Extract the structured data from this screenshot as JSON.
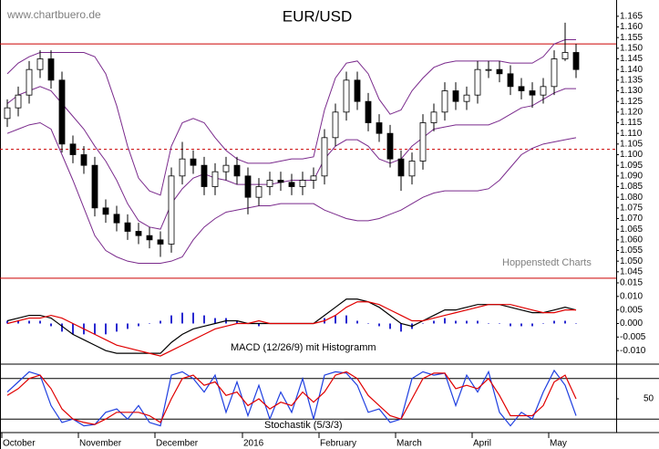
{
  "chart_data": [
    {
      "type": "candlestick",
      "title": "EUR/USD",
      "annotations": [
        "www.chartbuero.de",
        "Hoppenstedt Charts"
      ],
      "categories": [
        "October",
        null,
        null,
        null,
        null,
        null,
        null,
        "November",
        null,
        null,
        null,
        null,
        null,
        null,
        "December",
        null,
        null,
        null,
        null,
        null,
        null,
        null,
        "2016",
        null,
        null,
        null,
        null,
        null,
        null,
        "February",
        null,
        null,
        null,
        null,
        null,
        null,
        "March",
        null,
        null,
        null,
        null,
        null,
        null,
        "April",
        null,
        null,
        null,
        null,
        null,
        null,
        "May",
        null,
        null
      ],
      "open": [
        1.117,
        1.122,
        1.128,
        1.14,
        1.145,
        1.135,
        1.105,
        1.1,
        1.095,
        1.075,
        1.072,
        1.068,
        1.064,
        1.062,
        1.06,
        1.058,
        1.09,
        1.098,
        1.095,
        1.085,
        1.092,
        1.095,
        1.09,
        1.08,
        1.085,
        1.088,
        1.087,
        1.085,
        1.088,
        1.09,
        1.108,
        1.12,
        1.135,
        1.125,
        1.115,
        1.11,
        1.098,
        1.09,
        1.097,
        1.115,
        1.12,
        1.13,
        1.125,
        1.128,
        1.14,
        1.14,
        1.138,
        1.132,
        1.13,
        1.128,
        1.132,
        1.145,
        1.148
      ],
      "high": [
        1.126,
        1.132,
        1.144,
        1.149,
        1.149,
        1.139,
        1.109,
        1.104,
        1.099,
        1.079,
        1.076,
        1.072,
        1.068,
        1.066,
        1.064,
        1.094,
        1.106,
        1.102,
        1.099,
        1.096,
        1.099,
        1.099,
        1.094,
        1.089,
        1.092,
        1.092,
        1.091,
        1.092,
        1.094,
        1.112,
        1.124,
        1.139,
        1.139,
        1.129,
        1.119,
        1.114,
        1.102,
        1.101,
        1.119,
        1.124,
        1.134,
        1.134,
        1.132,
        1.144,
        1.144,
        1.144,
        1.142,
        1.136,
        1.134,
        1.136,
        1.149,
        1.162,
        1.152
      ],
      "low": [
        1.113,
        1.118,
        1.124,
        1.136,
        1.131,
        1.101,
        1.096,
        1.091,
        1.071,
        1.068,
        1.064,
        1.06,
        1.058,
        1.056,
        1.052,
        1.054,
        1.086,
        1.091,
        1.081,
        1.081,
        1.088,
        1.086,
        1.072,
        1.076,
        1.081,
        1.083,
        1.081,
        1.081,
        1.084,
        1.086,
        1.104,
        1.116,
        1.121,
        1.111,
        1.106,
        1.094,
        1.083,
        1.086,
        1.093,
        1.111,
        1.116,
        1.121,
        1.121,
        1.124,
        1.136,
        1.134,
        1.128,
        1.126,
        1.122,
        1.124,
        1.128,
        1.144,
        1.136
      ],
      "close": [
        1.122,
        1.128,
        1.14,
        1.145,
        1.135,
        1.105,
        1.1,
        1.095,
        1.075,
        1.072,
        1.068,
        1.064,
        1.062,
        1.06,
        1.058,
        1.09,
        1.098,
        1.095,
        1.085,
        1.092,
        1.095,
        1.09,
        1.08,
        1.085,
        1.088,
        1.087,
        1.085,
        1.088,
        1.09,
        1.108,
        1.12,
        1.135,
        1.125,
        1.115,
        1.11,
        1.098,
        1.09,
        1.097,
        1.115,
        1.12,
        1.13,
        1.125,
        1.128,
        1.14,
        1.14,
        1.138,
        1.132,
        1.13,
        1.128,
        1.132,
        1.145,
        1.148,
        1.14
      ],
      "color_up": "#ffffff",
      "color_down": "#000000",
      "bands": [
        {
          "color": "#7a2a8c",
          "values": [
            1.138,
            1.143,
            1.146,
            1.148,
            1.148,
            1.148,
            1.148,
            1.148,
            1.146,
            1.138,
            1.123,
            1.104,
            1.089,
            1.083,
            1.081,
            1.104,
            1.115,
            1.117,
            1.115,
            1.108,
            1.102,
            1.098,
            1.096,
            1.096,
            1.096,
            1.097,
            1.098,
            1.098,
            1.099,
            1.121,
            1.136,
            1.143,
            1.144,
            1.138,
            1.126,
            1.119,
            1.121,
            1.13,
            1.136,
            1.141,
            1.143,
            1.144,
            1.144,
            1.144,
            1.144,
            1.144,
            1.143,
            1.143,
            1.143,
            1.146,
            1.152,
            1.154,
            1.154
          ]
        },
        {
          "color": "#7a2a8c",
          "values": [
            1.124,
            1.128,
            1.13,
            1.132,
            1.13,
            1.124,
            1.118,
            1.112,
            1.104,
            1.097,
            1.088,
            1.077,
            1.069,
            1.066,
            1.065,
            1.077,
            1.084,
            1.089,
            1.091,
            1.089,
            1.088,
            1.086,
            1.086,
            1.086,
            1.086,
            1.087,
            1.088,
            1.088,
            1.088,
            1.098,
            1.104,
            1.107,
            1.107,
            1.104,
            1.098,
            1.096,
            1.098,
            1.104,
            1.108,
            1.112,
            1.113,
            1.114,
            1.114,
            1.114,
            1.114,
            1.116,
            1.119,
            1.122,
            1.123,
            1.126,
            1.129,
            1.131,
            1.131
          ]
        },
        {
          "color": "#7a2a8c",
          "values": [
            1.11,
            1.112,
            1.114,
            1.115,
            1.112,
            1.1,
            1.088,
            1.075,
            1.062,
            1.055,
            1.052,
            1.05,
            1.049,
            1.049,
            1.049,
            1.05,
            1.052,
            1.06,
            1.066,
            1.07,
            1.073,
            1.074,
            1.075,
            1.076,
            1.076,
            1.077,
            1.077,
            1.077,
            1.077,
            1.074,
            1.072,
            1.07,
            1.069,
            1.069,
            1.07,
            1.072,
            1.074,
            1.077,
            1.08,
            1.082,
            1.083,
            1.083,
            1.083,
            1.083,
            1.084,
            1.088,
            1.094,
            1.1,
            1.103,
            1.105,
            1.106,
            1.107,
            1.108
          ]
        }
      ],
      "hlines": [
        {
          "value": 1.152,
          "color": "#cc0000",
          "style": "solid"
        },
        {
          "value": 1.1025,
          "color": "#cc0000",
          "style": "dashed"
        },
        {
          "value": 1.042,
          "color": "#cc0000",
          "style": "solid"
        }
      ],
      "ylim": [
        1.0415,
        1.1705
      ],
      "yticks": [
        1.045,
        {
          "value": 1.05,
          "label": "1.050"
        },
        1.055,
        {
          "value": 1.06,
          "label": "1.060"
        },
        1.065,
        {
          "value": 1.07,
          "label": "1.070"
        },
        1.075,
        {
          "value": 1.08,
          "label": "1.080"
        },
        1.085,
        {
          "value": 1.09,
          "label": "1.090"
        },
        1.095,
        {
          "value": 1.1,
          "label": "1.100"
        },
        1.105,
        {
          "value": 1.11,
          "label": "1.110"
        },
        1.115,
        {
          "value": 1.12,
          "label": "1.120"
        },
        1.125,
        {
          "value": 1.13,
          "label": "1.130"
        },
        1.135,
        {
          "value": 1.14,
          "label": "1.140"
        },
        1.145,
        {
          "value": 1.15,
          "label": "1.150"
        },
        1.155,
        {
          "value": 1.16,
          "label": "1.160"
        },
        1.165
      ]
    },
    {
      "type": "line",
      "title": "MACD (12/26/9) mit Histogramm",
      "series": [
        {
          "color": "#000000",
          "values": [
            0.001,
            0.002,
            0.003,
            0.003,
            0.002,
            -0.001,
            -0.004,
            -0.006,
            -0.008,
            -0.01,
            -0.011,
            -0.011,
            -0.011,
            -0.011,
            -0.011,
            -0.007,
            -0.004,
            -0.002,
            -0.001,
            0.0,
            0.001,
            0.001,
            0.0,
            0.0,
            0.0,
            0.0,
            0.0,
            0.0,
            0.0,
            0.003,
            0.006,
            0.009,
            0.009,
            0.008,
            0.006,
            0.003,
            0.0,
            -0.001,
            0.001,
            0.003,
            0.005,
            0.005,
            0.006,
            0.007,
            0.007,
            0.007,
            0.006,
            0.005,
            0.004,
            0.004,
            0.005,
            0.006,
            0.005
          ]
        },
        {
          "color": "#e00000",
          "values": [
            0.0,
            0.001,
            0.002,
            0.002,
            0.003,
            0.002,
            0.0,
            -0.002,
            -0.004,
            -0.006,
            -0.008,
            -0.009,
            -0.01,
            -0.011,
            -0.012,
            -0.01,
            -0.008,
            -0.006,
            -0.004,
            -0.002,
            -0.001,
            0.0,
            0.0,
            0.001,
            0.0,
            0.0,
            0.0,
            0.0,
            0.0,
            0.001,
            0.003,
            0.006,
            0.008,
            0.008,
            0.007,
            0.005,
            0.003,
            0.001,
            0.001,
            0.002,
            0.003,
            0.004,
            0.005,
            0.006,
            0.007,
            0.007,
            0.007,
            0.006,
            0.005,
            0.004,
            0.004,
            0.005,
            0.005
          ]
        }
      ],
      "histogram": {
        "color": "#2a2ad0",
        "values": [
          0.001,
          0.001,
          0.001,
          0.001,
          -0.001,
          -0.003,
          -0.004,
          -0.004,
          -0.004,
          -0.004,
          -0.003,
          -0.002,
          -0.001,
          0.0,
          0.001,
          0.003,
          0.004,
          0.004,
          0.003,
          0.002,
          0.002,
          0.001,
          0.0,
          -0.001,
          0.0,
          0.0,
          0.0,
          0.0,
          0.0,
          0.002,
          0.003,
          0.003,
          0.001,
          0.0,
          -0.001,
          -0.002,
          -0.003,
          -0.002,
          0.0,
          0.001,
          0.002,
          0.001,
          0.001,
          0.001,
          0.0,
          0.0,
          -0.001,
          -0.001,
          -0.001,
          0.0,
          0.001,
          0.001,
          0.0
        ]
      },
      "ylim": [
        -0.015,
        0.016
      ],
      "yticks": [
        0.015,
        {
          "value": 0.01,
          "label": "0.010"
        },
        0.005,
        {
          "value": 0,
          "label": "0.000"
        },
        -0.005,
        {
          "value": -0.01,
          "label": "-0.010"
        }
      ]
    },
    {
      "type": "line",
      "title": "Stochastik (5/3/3)",
      "series": [
        {
          "color": "#1f3fe0",
          "values": [
            60,
            75,
            90,
            85,
            40,
            15,
            20,
            10,
            12,
            30,
            35,
            20,
            40,
            15,
            10,
            85,
            90,
            80,
            60,
            85,
            30,
            75,
            25,
            70,
            20,
            60,
            30,
            80,
            20,
            85,
            90,
            88,
            70,
            30,
            35,
            15,
            20,
            80,
            90,
            85,
            88,
            40,
            85,
            60,
            90,
            30,
            10,
            30,
            20,
            60,
            92,
            70,
            25
          ]
        },
        {
          "color": "#e00000",
          "values": [
            55,
            65,
            80,
            85,
            65,
            35,
            20,
            15,
            12,
            20,
            30,
            30,
            30,
            25,
            15,
            50,
            80,
            85,
            70,
            75,
            55,
            60,
            40,
            50,
            35,
            45,
            40,
            60,
            45,
            60,
            85,
            90,
            80,
            55,
            40,
            25,
            20,
            50,
            80,
            88,
            88,
            65,
            70,
            65,
            80,
            55,
            25,
            25,
            25,
            40,
            75,
            85,
            50
          ]
        }
      ],
      "levels": [
        20,
        80
      ],
      "ylim": [
        0,
        100
      ],
      "yticks": [
        50
      ]
    }
  ]
}
